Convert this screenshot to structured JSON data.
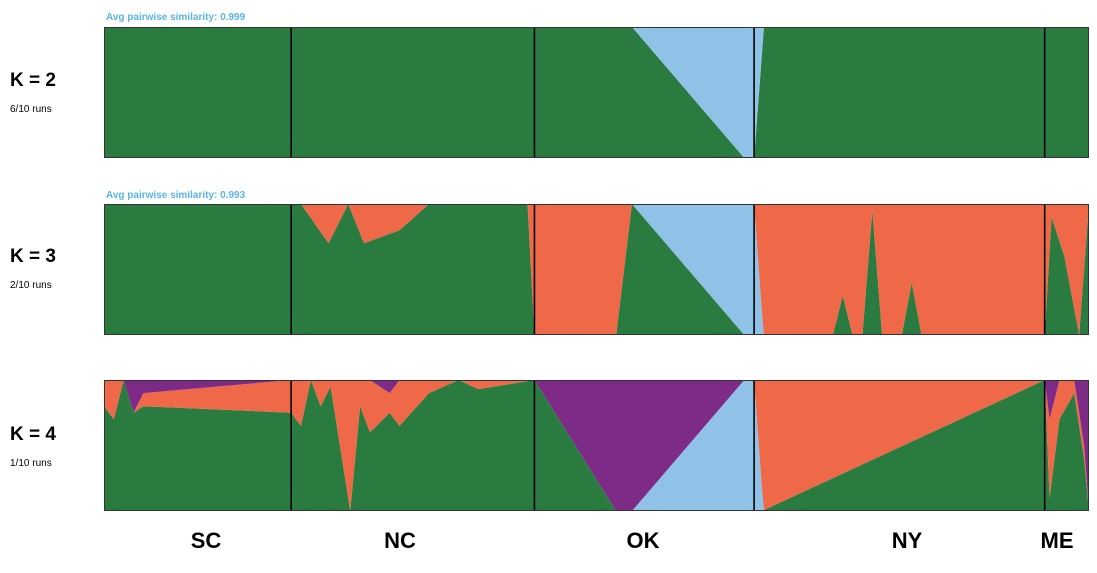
{
  "colors": {
    "green": "#2a7b3f",
    "blue": "#90c2e7",
    "orange": "#ef6847",
    "purple": "#7d2b87",
    "similarity_text": "#5ab4e5",
    "divider": "#000000"
  },
  "populations": [
    "SC",
    "NC",
    "OK",
    "NY",
    "ME"
  ],
  "chart_data": [
    {
      "type": "area",
      "title": "K = 2",
      "subtitle": "6/10 runs",
      "annotation": "Avg pairwise similarity: 0.999",
      "ylim": [
        0,
        1
      ],
      "population_labels": [
        "SC",
        "NC",
        "OK",
        "NY",
        "ME"
      ],
      "population_boundaries": [
        0.19,
        0.437,
        0.66,
        0.955
      ],
      "series": [
        {
          "color": "green",
          "x": [
            0,
            0.19,
            0.437,
            0.52,
            0.536,
            0.65,
            0.66,
            0.67,
            1
          ],
          "values": [
            1,
            1,
            1,
            1,
            1,
            0,
            0,
            1,
            1
          ]
        },
        {
          "color": "blue",
          "x": [
            0,
            0.19,
            0.437,
            0.52,
            0.536,
            0.65,
            0.66,
            0.67,
            1
          ],
          "values": [
            0,
            0,
            0,
            0,
            0,
            1,
            1,
            0,
            0
          ]
        }
      ]
    },
    {
      "type": "area",
      "title": "K = 3",
      "subtitle": "2/10 runs",
      "annotation": "Avg pairwise similarity: 0.993",
      "ylim": [
        0,
        1
      ],
      "population_labels": [
        "SC",
        "NC",
        "OK",
        "NY",
        "ME"
      ],
      "population_boundaries": [
        0.19,
        0.437,
        0.66,
        0.955
      ],
      "series": [
        {
          "color": "green",
          "x": [
            0,
            0.19,
            0.2,
            0.228,
            0.248,
            0.264,
            0.3,
            0.33,
            0.43,
            0.437,
            0.52,
            0.536,
            0.65,
            0.66,
            0.668,
            0.74,
            0.75,
            0.76,
            0.77,
            0.78,
            0.79,
            0.81,
            0.82,
            0.83,
            0.84,
            0.955,
            0.962,
            0.975,
            0.99,
            1
          ],
          "values": [
            1,
            1,
            1,
            0.7,
            1,
            0.7,
            0.8,
            1,
            1,
            0,
            0,
            1,
            0,
            0,
            0,
            0,
            0.3,
            0,
            0,
            0.95,
            0,
            0,
            0.4,
            0,
            0,
            0,
            0.9,
            0.6,
            0,
            1
          ]
        },
        {
          "color": "blue",
          "x": [
            0,
            0.19,
            0.437,
            0.52,
            0.536,
            0.65,
            0.66,
            0.67,
            1
          ],
          "values": [
            0,
            0,
            0,
            0,
            0,
            1,
            1,
            0,
            0
          ]
        },
        {
          "color": "orange",
          "x": [
            0,
            0.19,
            0.2,
            0.228,
            0.248,
            0.264,
            0.3,
            0.33,
            0.43,
            0.437,
            0.52,
            0.536,
            0.65,
            0.66,
            0.668,
            0.74,
            0.75,
            0.76,
            0.77,
            0.78,
            0.79,
            0.81,
            0.82,
            0.83,
            0.84,
            0.955,
            0.962,
            0.975,
            0.99,
            1
          ],
          "values": [
            0,
            0,
            0,
            0.3,
            0,
            0.3,
            0.2,
            0,
            0,
            1,
            1,
            0,
            0,
            0,
            1,
            1,
            0.7,
            1,
            1,
            0.05,
            1,
            1,
            0.6,
            1,
            1,
            1,
            0.1,
            0.4,
            1,
            0
          ]
        }
      ]
    },
    {
      "type": "area",
      "title": "K = 4",
      "subtitle": "1/10 runs",
      "annotation": "",
      "ylim": [
        0,
        1
      ],
      "population_labels": [
        "SC",
        "NC",
        "OK",
        "NY",
        "ME"
      ],
      "population_boundaries": [
        0.19,
        0.437,
        0.66,
        0.955
      ],
      "series": [
        {
          "color": "green",
          "x": [
            0,
            0.01,
            0.02,
            0.03,
            0.04,
            0.19,
            0.2,
            0.21,
            0.22,
            0.23,
            0.25,
            0.26,
            0.27,
            0.29,
            0.3,
            0.33,
            0.36,
            0.38,
            0.437,
            0.52,
            0.536,
            0.65,
            0.66,
            0.668,
            0.955,
            0.96,
            0.97,
            0.985,
            0.995,
            1
          ],
          "values": [
            0.8,
            0.7,
            1,
            0.75,
            0.8,
            0.75,
            0.65,
            1,
            0.8,
            0.95,
            0,
            0.8,
            0.6,
            0.75,
            0.65,
            0.9,
            1,
            0.93,
            1,
            0,
            0,
            0,
            0,
            0,
            1,
            0.1,
            0.7,
            0.9,
            0.4,
            0
          ]
        },
        {
          "color": "blue",
          "x": [
            0,
            0.19,
            0.437,
            0.52,
            0.536,
            0.65,
            0.66,
            0.67,
            1
          ],
          "values": [
            0,
            0,
            0,
            0,
            0,
            1,
            1,
            0,
            0
          ]
        },
        {
          "color": "orange",
          "x": [
            0,
            0.01,
            0.02,
            0.03,
            0.04,
            0.19,
            0.2,
            0.21,
            0.22,
            0.23,
            0.25,
            0.26,
            0.27,
            0.29,
            0.3,
            0.33,
            0.36,
            0.38,
            0.437,
            0.52,
            0.536,
            0.65,
            0.66,
            0.668,
            0.955,
            0.96,
            0.97,
            0.985,
            0.995,
            1
          ],
          "values": [
            0.2,
            0.3,
            0,
            0,
            0.1,
            0.25,
            0.35,
            0,
            0.2,
            0.05,
            1,
            0.2,
            0.4,
            0.15,
            0.35,
            0.1,
            0,
            0.07,
            0,
            0,
            0,
            0,
            0,
            1,
            0,
            0.6,
            0.3,
            0.1,
            0.1,
            0
          ]
        },
        {
          "color": "purple",
          "x": [
            0,
            0.01,
            0.02,
            0.03,
            0.04,
            0.19,
            0.2,
            0.21,
            0.22,
            0.23,
            0.25,
            0.26,
            0.27,
            0.29,
            0.3,
            0.33,
            0.36,
            0.38,
            0.437,
            0.52,
            0.536,
            0.65,
            0.66,
            0.668,
            0.955,
            0.96,
            0.97,
            0.985,
            0.995,
            1
          ],
          "values": [
            0,
            0,
            0,
            0.25,
            0.1,
            0,
            0,
            0,
            0,
            0,
            0,
            0,
            0,
            0.1,
            0,
            0,
            0,
            0,
            0,
            1,
            1,
            0,
            0,
            0,
            0,
            0.3,
            0,
            0,
            0.5,
            1
          ]
        }
      ]
    }
  ]
}
